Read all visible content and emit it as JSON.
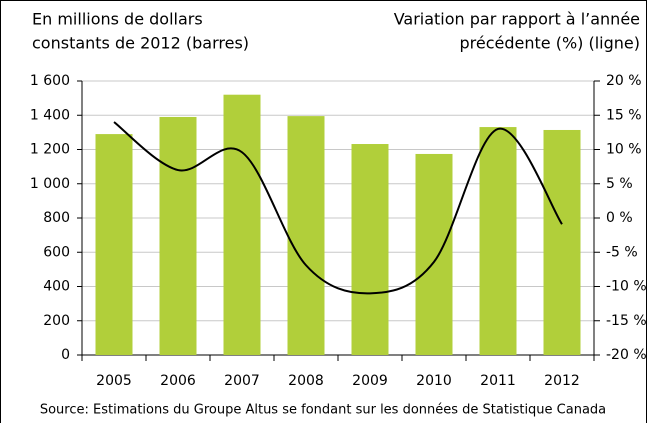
{
  "chart_data": {
    "type": "bar",
    "ylabel": [
      "En millions de dollars",
      "constants de 2012 (barres)"
    ],
    "y2label": [
      "Variation par rapport à l’année",
      "précédente (%) (ligne)"
    ],
    "source": "Source: Estimations du Groupe Altus se fondant sur les données de Statistique Canada",
    "categories": [
      "2005",
      "2006",
      "2007",
      "2008",
      "2009",
      "2010",
      "2011",
      "2012"
    ],
    "series": [
      {
        "type": "bar",
        "color": "#b1cf3a",
        "values": [
          1290,
          1390,
          1520,
          1395,
          1232,
          1174,
          1331,
          1314
        ]
      },
      {
        "type": "line",
        "axis": "y2",
        "color": "#000000",
        "values": [
          14.0,
          7.0,
          9.6,
          -6.9,
          -11.0,
          -6.4,
          13.0,
          -0.9
        ]
      }
    ],
    "ylim": [
      0,
      1600
    ],
    "yticks": [
      0,
      200,
      400,
      600,
      800,
      {
        "value": 1000,
        "label": "1 000"
      },
      {
        "value": 1200,
        "label": "1 200"
      },
      {
        "value": 1400,
        "label": "1 400"
      },
      {
        "value": 1600,
        "label": "1 600"
      }
    ],
    "y2lim": [
      -20,
      20
    ],
    "y2ticks": [
      {
        "value": -20,
        "label": "-20 %"
      },
      {
        "value": -15,
        "label": "-15 %"
      },
      {
        "value": -10,
        "label": "-10 %"
      },
      {
        "value": -5,
        "label": "-5 %"
      },
      {
        "value": 0,
        "label": "0 %"
      },
      {
        "value": 5,
        "label": "5 %"
      },
      {
        "value": 10,
        "label": "10 %"
      },
      {
        "value": 15,
        "label": "15 %"
      },
      {
        "value": 20,
        "label": "20 %"
      }
    ],
    "grid": true
  }
}
